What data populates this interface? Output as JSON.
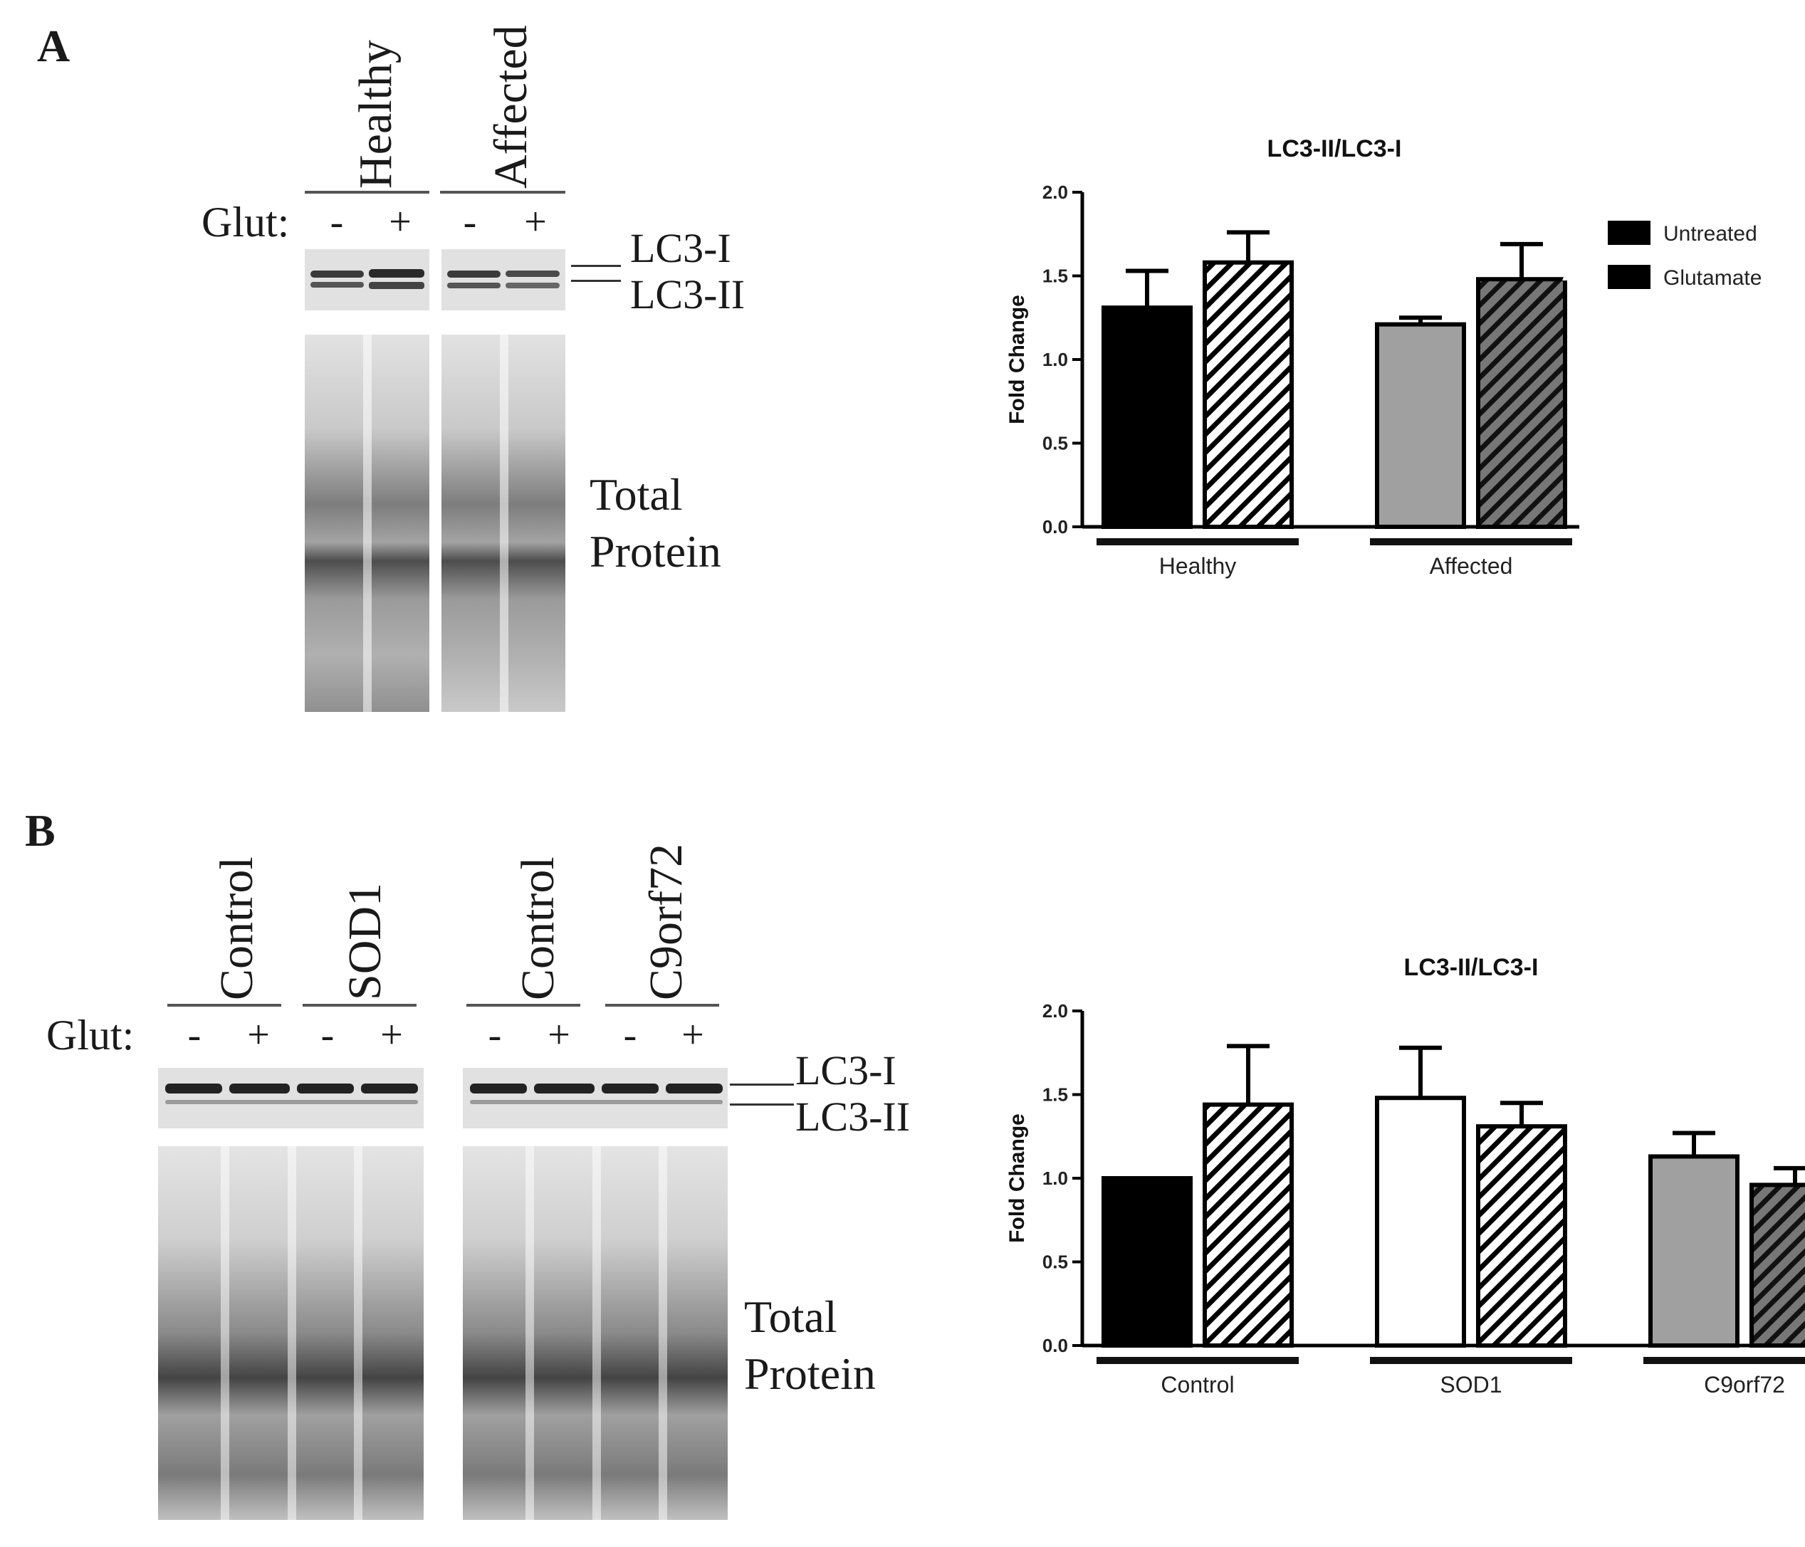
{
  "panel_a": {
    "letter": "A",
    "groups": [
      "Healthy",
      "Affected"
    ],
    "glut_label": "Glut:",
    "treatment_signs": [
      "-",
      "+",
      "-",
      "+"
    ],
    "bands": [
      "LC3-I",
      "LC3-II"
    ],
    "total_protein": [
      "Total",
      "Protein"
    ]
  },
  "panel_b": {
    "letter": "B",
    "groups": [
      "Control",
      "SOD1",
      "Control",
      "C9orf72"
    ],
    "glut_label": "Glut:",
    "treatment_signs": [
      "-",
      "+",
      "-",
      "+",
      "-",
      "+",
      "-",
      "+"
    ],
    "bands": [
      "LC3-I",
      "LC3-II"
    ],
    "total_protein": [
      "Total",
      "Protein"
    ]
  },
  "chart_data": [
    {
      "type": "bar",
      "title": "LC3-II/LC3-I",
      "ylabel": "Fold Change",
      "ylim": [
        0,
        2.0
      ],
      "yticks": [
        "0.0",
        "0.5",
        "1.0",
        "1.5",
        "2.0"
      ],
      "categories": [
        "Healthy",
        "Affected"
      ],
      "legend": [
        "Untreated",
        "Glutamate"
      ],
      "legend_position": "right",
      "series": [
        {
          "name": "Untreated",
          "values": [
            1.31,
            1.21
          ],
          "errors": [
            0.22,
            0.04
          ]
        },
        {
          "name": "Glutamate",
          "values": [
            1.58,
            1.48
          ],
          "errors": [
            0.18,
            0.21
          ]
        }
      ],
      "bar_colors": [
        [
          "#000000",
          "#ffffff"
        ],
        [
          "#a0a0a0",
          "#777777"
        ]
      ],
      "hatch": [
        false,
        true
      ]
    },
    {
      "type": "bar",
      "title": "LC3-II/LC3-I",
      "ylabel": "Fold Change",
      "ylim": [
        0,
        2.0
      ],
      "yticks": [
        "0.0",
        "0.5",
        "1.0",
        "1.5",
        "2.0"
      ],
      "categories": [
        "Control",
        "SOD1",
        "C9orf72"
      ],
      "legend": [
        "Untreated",
        "Glutamate"
      ],
      "legend_position": "right",
      "series": [
        {
          "name": "Untreated",
          "values": [
            1.0,
            1.48,
            1.13
          ],
          "errors": [
            0,
            0.3,
            0.14
          ]
        },
        {
          "name": "Glutamate",
          "values": [
            1.44,
            1.31,
            0.96
          ],
          "errors": [
            0.35,
            0.14,
            0.1
          ]
        }
      ],
      "bar_colors": [
        [
          "#000000",
          "#ffffff"
        ],
        [
          "#ffffff",
          "#ffffff"
        ],
        [
          "#a0a0a0",
          "#777777"
        ]
      ],
      "hatch": [
        false,
        true
      ]
    }
  ]
}
